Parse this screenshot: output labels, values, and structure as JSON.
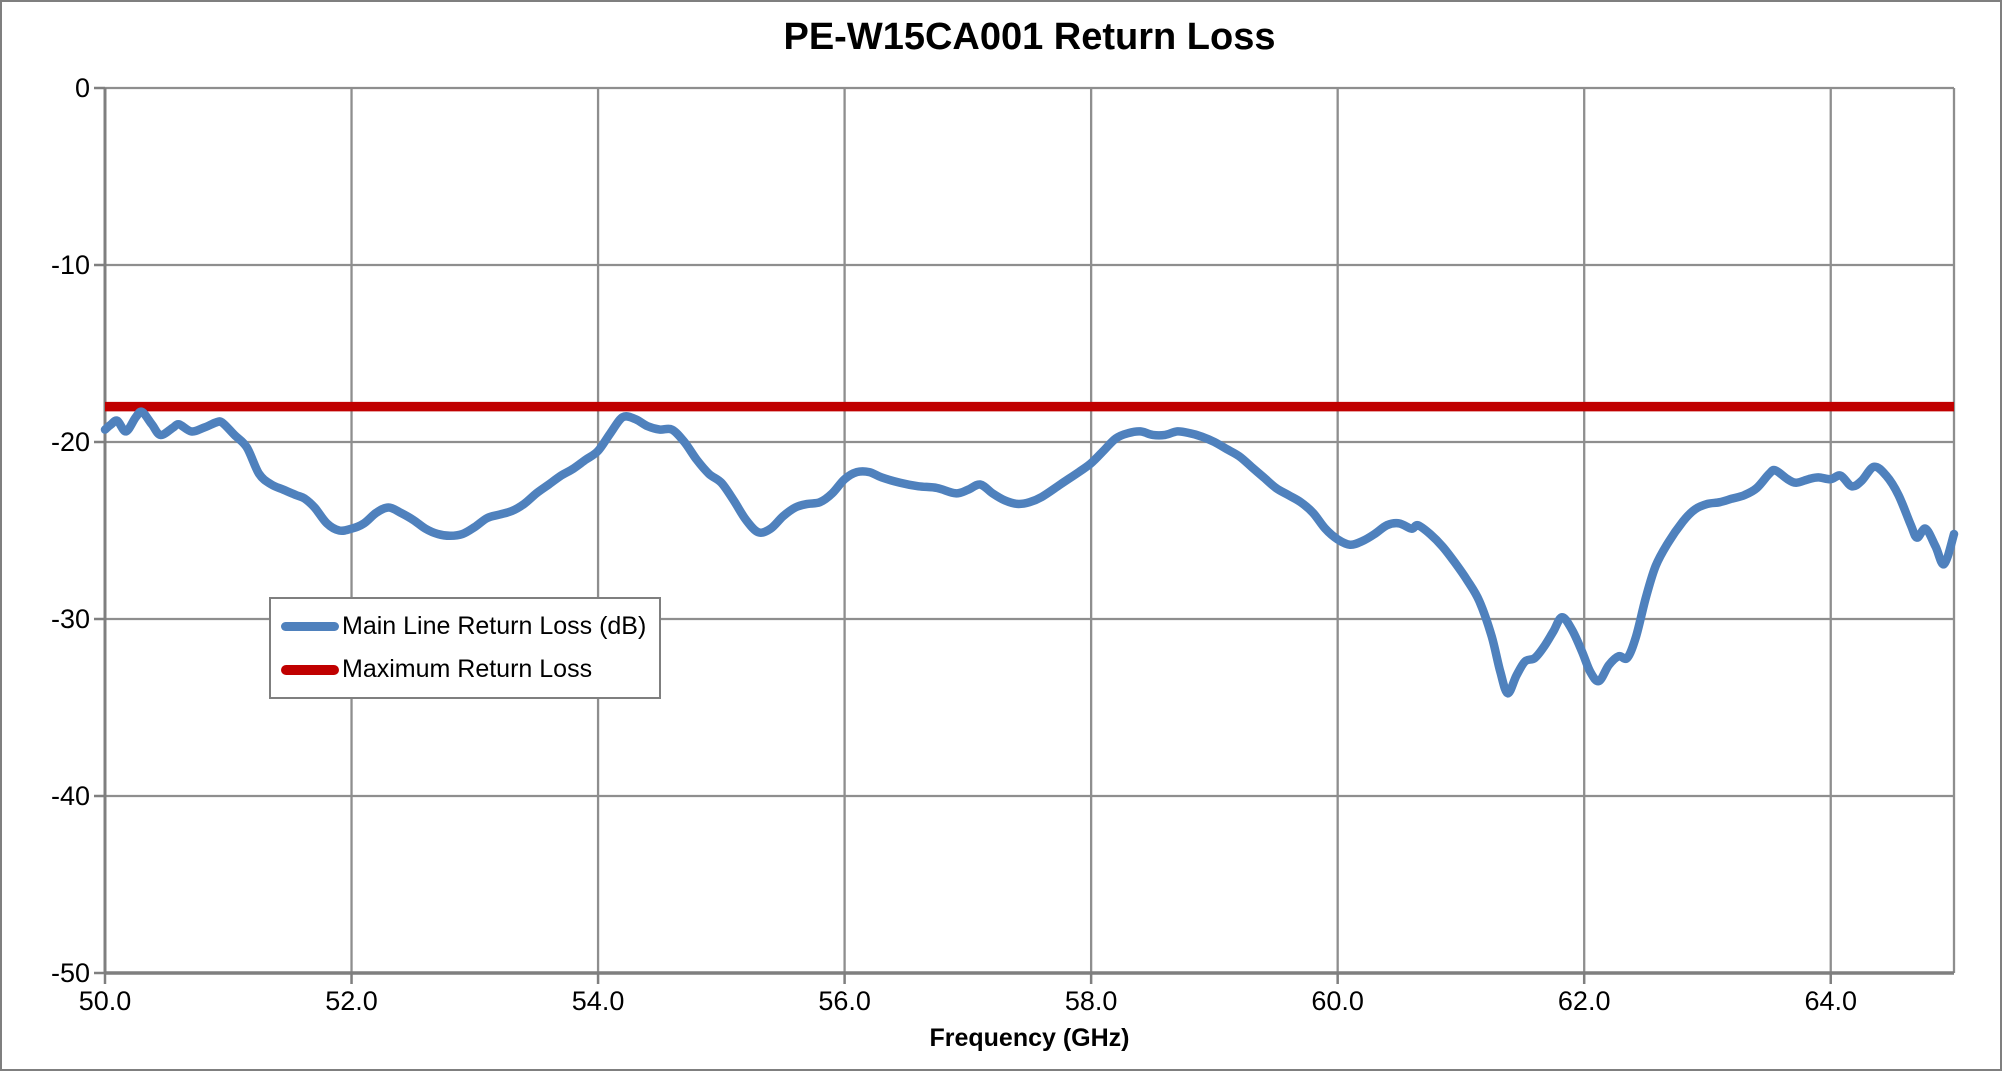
{
  "window": {
    "background": "#ffffff",
    "frame_border_color": "#7f7f7f"
  },
  "chart_data": {
    "type": "line",
    "title": "PE-W15CA001 Return Loss",
    "xlabel": "Frequency (GHz)",
    "ylabel": "",
    "xlim": [
      50.0,
      65.0
    ],
    "ylim": [
      -50,
      0
    ],
    "grid": true,
    "legend_position": "inside-upper-left-of-lower-half",
    "x_tick_values": [
      50,
      52,
      54,
      56,
      58,
      60,
      62,
      64
    ],
    "x_tick_labels": [
      "50.0",
      "52.0",
      "54.0",
      "56.0",
      "58.0",
      "60.0",
      "62.0",
      "64.0"
    ],
    "x_gridline_values": [
      52,
      54,
      56,
      58,
      60,
      62,
      64,
      65
    ],
    "y_tick_values": [
      0,
      -10,
      -20,
      -30,
      -40,
      -50
    ],
    "y_tick_labels": [
      "0",
      "-10",
      "-20",
      "-30",
      "-40",
      "-50"
    ],
    "y_gridline_values": [
      0,
      -10,
      -20,
      -30,
      -40
    ],
    "colors": {
      "main_line": "#4F81BD",
      "max_line": "#C00000",
      "gridline": "#8E8E8E",
      "axis": "#7F7F7F",
      "text": "#000000"
    },
    "series": [
      {
        "name": "Main Line Return Loss (dB)",
        "color": "#4F81BD",
        "points": [
          [
            50.0,
            -19.3
          ],
          [
            50.05,
            -19.0
          ],
          [
            50.1,
            -18.8
          ],
          [
            50.17,
            -19.4
          ],
          [
            50.25,
            -18.6
          ],
          [
            50.3,
            -18.3
          ],
          [
            50.38,
            -19.0
          ],
          [
            50.45,
            -19.6
          ],
          [
            50.55,
            -19.2
          ],
          [
            50.6,
            -19.0
          ],
          [
            50.7,
            -19.4
          ],
          [
            50.8,
            -19.2
          ],
          [
            50.9,
            -18.9
          ],
          [
            50.95,
            -18.9
          ],
          [
            51.05,
            -19.6
          ],
          [
            51.15,
            -20.3
          ],
          [
            51.25,
            -21.8
          ],
          [
            51.35,
            -22.4
          ],
          [
            51.45,
            -22.7
          ],
          [
            51.55,
            -23.0
          ],
          [
            51.62,
            -23.2
          ],
          [
            51.7,
            -23.7
          ],
          [
            51.8,
            -24.6
          ],
          [
            51.9,
            -25.0
          ],
          [
            52.0,
            -24.9
          ],
          [
            52.1,
            -24.6
          ],
          [
            52.2,
            -24.0
          ],
          [
            52.3,
            -23.7
          ],
          [
            52.4,
            -24.0
          ],
          [
            52.5,
            -24.4
          ],
          [
            52.6,
            -24.9
          ],
          [
            52.7,
            -25.2
          ],
          [
            52.8,
            -25.3
          ],
          [
            52.9,
            -25.2
          ],
          [
            53.0,
            -24.8
          ],
          [
            53.1,
            -24.3
          ],
          [
            53.2,
            -24.1
          ],
          [
            53.3,
            -23.9
          ],
          [
            53.4,
            -23.5
          ],
          [
            53.5,
            -22.9
          ],
          [
            53.6,
            -22.4
          ],
          [
            53.7,
            -21.9
          ],
          [
            53.8,
            -21.5
          ],
          [
            53.9,
            -21.0
          ],
          [
            54.0,
            -20.5
          ],
          [
            54.1,
            -19.5
          ],
          [
            54.2,
            -18.6
          ],
          [
            54.3,
            -18.7
          ],
          [
            54.4,
            -19.1
          ],
          [
            54.5,
            -19.3
          ],
          [
            54.6,
            -19.3
          ],
          [
            54.7,
            -20.0
          ],
          [
            54.8,
            -21.0
          ],
          [
            54.9,
            -21.8
          ],
          [
            55.0,
            -22.3
          ],
          [
            55.1,
            -23.3
          ],
          [
            55.2,
            -24.4
          ],
          [
            55.3,
            -25.1
          ],
          [
            55.4,
            -24.9
          ],
          [
            55.5,
            -24.2
          ],
          [
            55.6,
            -23.7
          ],
          [
            55.7,
            -23.5
          ],
          [
            55.8,
            -23.4
          ],
          [
            55.9,
            -22.9
          ],
          [
            56.0,
            -22.1
          ],
          [
            56.1,
            -21.7
          ],
          [
            56.2,
            -21.7
          ],
          [
            56.3,
            -22.0
          ],
          [
            56.45,
            -22.3
          ],
          [
            56.6,
            -22.5
          ],
          [
            56.75,
            -22.6
          ],
          [
            56.9,
            -22.9
          ],
          [
            57.0,
            -22.7
          ],
          [
            57.1,
            -22.4
          ],
          [
            57.2,
            -22.9
          ],
          [
            57.3,
            -23.3
          ],
          [
            57.4,
            -23.5
          ],
          [
            57.5,
            -23.4
          ],
          [
            57.6,
            -23.1
          ],
          [
            57.75,
            -22.4
          ],
          [
            57.9,
            -21.7
          ],
          [
            58.0,
            -21.2
          ],
          [
            58.1,
            -20.5
          ],
          [
            58.2,
            -19.8
          ],
          [
            58.3,
            -19.5
          ],
          [
            58.4,
            -19.4
          ],
          [
            58.5,
            -19.6
          ],
          [
            58.6,
            -19.6
          ],
          [
            58.7,
            -19.4
          ],
          [
            58.8,
            -19.5
          ],
          [
            58.9,
            -19.7
          ],
          [
            59.0,
            -20.0
          ],
          [
            59.1,
            -20.4
          ],
          [
            59.2,
            -20.8
          ],
          [
            59.3,
            -21.4
          ],
          [
            59.4,
            -22.0
          ],
          [
            59.5,
            -22.6
          ],
          [
            59.6,
            -23.0
          ],
          [
            59.7,
            -23.4
          ],
          [
            59.8,
            -24.0
          ],
          [
            59.9,
            -24.9
          ],
          [
            60.0,
            -25.5
          ],
          [
            60.1,
            -25.8
          ],
          [
            60.2,
            -25.6
          ],
          [
            60.3,
            -25.2
          ],
          [
            60.4,
            -24.7
          ],
          [
            60.5,
            -24.6
          ],
          [
            60.6,
            -24.9
          ],
          [
            60.65,
            -24.7
          ],
          [
            60.75,
            -25.2
          ],
          [
            60.85,
            -25.9
          ],
          [
            60.95,
            -26.8
          ],
          [
            61.05,
            -27.8
          ],
          [
            61.15,
            -29.0
          ],
          [
            61.25,
            -31.0
          ],
          [
            61.32,
            -33.0
          ],
          [
            61.38,
            -34.2
          ],
          [
            61.45,
            -33.2
          ],
          [
            61.52,
            -32.4
          ],
          [
            61.6,
            -32.2
          ],
          [
            61.68,
            -31.5
          ],
          [
            61.75,
            -30.7
          ],
          [
            61.82,
            -29.9
          ],
          [
            61.9,
            -30.6
          ],
          [
            61.98,
            -31.8
          ],
          [
            62.05,
            -33.0
          ],
          [
            62.12,
            -33.5
          ],
          [
            62.2,
            -32.6
          ],
          [
            62.28,
            -32.1
          ],
          [
            62.35,
            -32.2
          ],
          [
            62.42,
            -31.0
          ],
          [
            62.5,
            -28.8
          ],
          [
            62.58,
            -27.0
          ],
          [
            62.68,
            -25.7
          ],
          [
            62.8,
            -24.5
          ],
          [
            62.9,
            -23.8
          ],
          [
            63.0,
            -23.5
          ],
          [
            63.1,
            -23.4
          ],
          [
            63.2,
            -23.2
          ],
          [
            63.3,
            -23.0
          ],
          [
            63.4,
            -22.6
          ],
          [
            63.5,
            -21.8
          ],
          [
            63.55,
            -21.6
          ],
          [
            63.65,
            -22.1
          ],
          [
            63.72,
            -22.3
          ],
          [
            63.82,
            -22.1
          ],
          [
            63.9,
            -22.0
          ],
          [
            64.0,
            -22.1
          ],
          [
            64.08,
            -21.9
          ],
          [
            64.17,
            -22.5
          ],
          [
            64.25,
            -22.2
          ],
          [
            64.35,
            -21.4
          ],
          [
            64.45,
            -21.9
          ],
          [
            64.55,
            -23.0
          ],
          [
            64.65,
            -24.7
          ],
          [
            64.7,
            -25.4
          ],
          [
            64.77,
            -24.9
          ],
          [
            64.85,
            -25.9
          ],
          [
            64.92,
            -26.9
          ],
          [
            65.0,
            -25.2
          ]
        ]
      },
      {
        "name": "Maximum Return Loss",
        "color": "#C00000",
        "constant_y": -18
      }
    ]
  }
}
